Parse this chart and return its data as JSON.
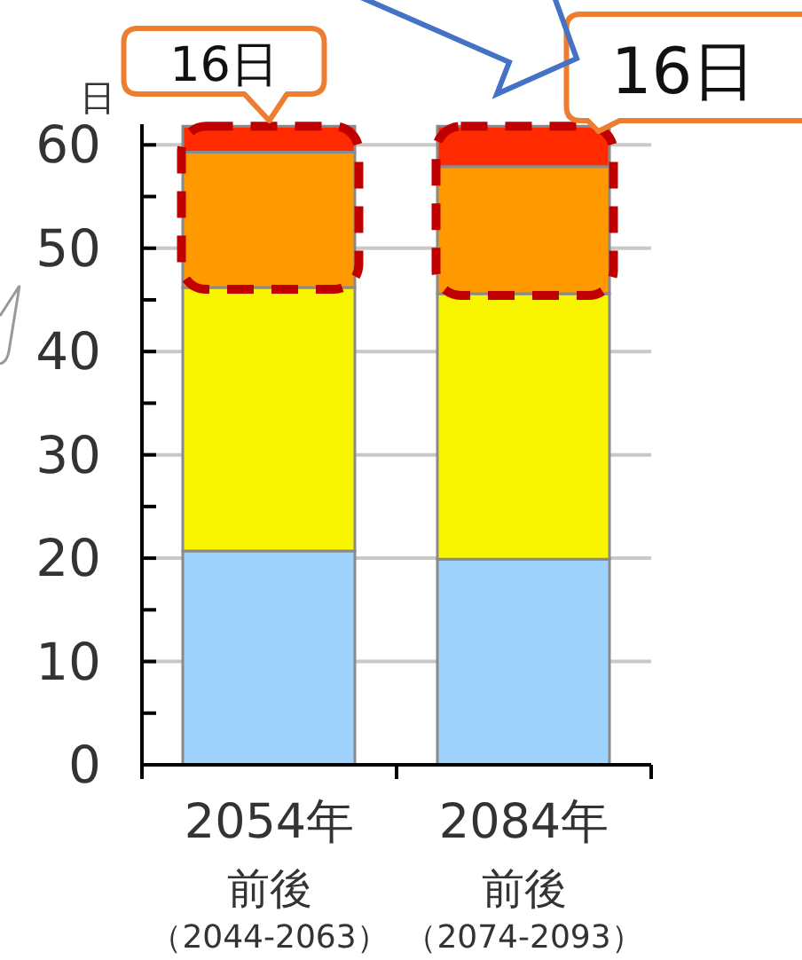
{
  "chart_data": {
    "type": "bar",
    "stacked": true,
    "ylabel": "日",
    "categories": [
      "2054年前後（2044-2063）",
      "2084年前後（2074-2093）"
    ],
    "series": [
      {
        "color": "#a0d2fe",
        "values": [
          20.7,
          19.9
        ]
      },
      {
        "color": "#f9f500",
        "values": [
          25.5,
          25.7
        ]
      },
      {
        "color": "#ff9900",
        "values": [
          13.1,
          12.3
        ]
      },
      {
        "color": "#ff2a00",
        "values": [
          2.5,
          3.9
        ]
      }
    ],
    "ylim": [
      0,
      62
    ],
    "yticks": [
      0,
      {
        "value": 5,
        "label": null
      },
      10,
      {
        "value": 15,
        "label": null
      },
      20,
      {
        "value": 25,
        "label": null
      },
      30,
      {
        "value": 35,
        "label": null
      },
      40,
      {
        "value": 45,
        "label": null
      },
      50,
      {
        "value": 55,
        "label": null
      },
      60
    ],
    "grid": "y",
    "annotations": [
      "16日",
      "16日"
    ]
  }
}
